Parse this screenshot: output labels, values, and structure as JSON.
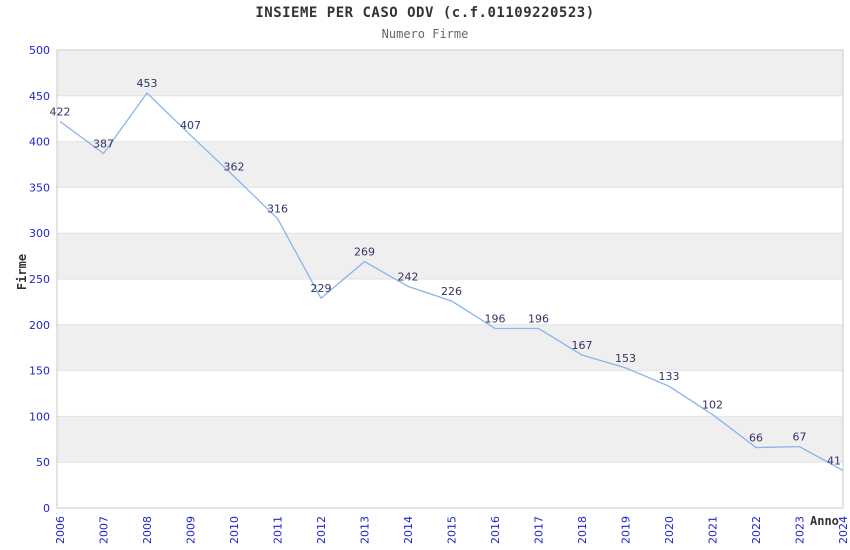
{
  "header": {
    "title": "INSIEME PER CASO ODV (c.f.01109220523)",
    "subtitle": "Numero Firme"
  },
  "chart_data": {
    "type": "line",
    "title": "INSIEME PER CASO ODV (c.f.01109220523)",
    "subtitle": "Numero Firme",
    "xlabel": "Anno",
    "ylabel": "Firme",
    "x": [
      "2006",
      "2007",
      "2008",
      "2009",
      "2010",
      "2011",
      "2012",
      "2013",
      "2014",
      "2015",
      "2016",
      "2017",
      "2018",
      "2019",
      "2020",
      "2021",
      "2022",
      "2023",
      "2024"
    ],
    "values": [
      422,
      387,
      453,
      407,
      362,
      316,
      229,
      269,
      242,
      226,
      196,
      196,
      167,
      153,
      133,
      102,
      66,
      67,
      41
    ],
    "ylim": [
      0,
      500
    ],
    "ytick_step": 50,
    "grid": "horizontal-bands",
    "legend": "none",
    "data_labels": true
  },
  "colors": {
    "line": "#8ab5e8",
    "band": "#efefef",
    "grid": "#e2e2e2",
    "frame": "#c9c9c9",
    "tick_label": "#2323cc",
    "data_label": "#333366",
    "axis_title": "#333333",
    "title": "#333333",
    "subtitle": "#666666"
  }
}
